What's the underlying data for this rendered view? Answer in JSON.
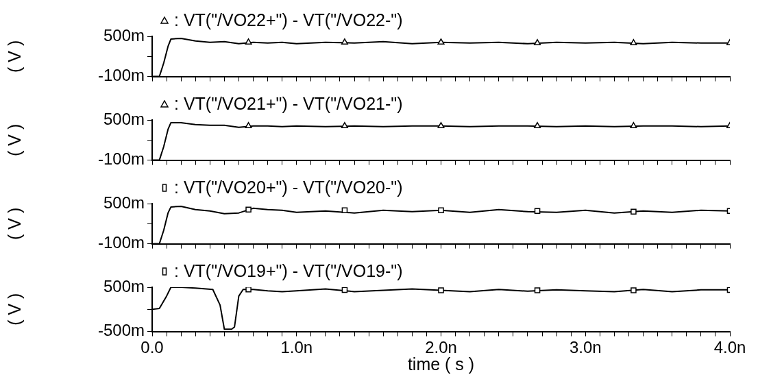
{
  "chart_data": [
    {
      "type": "line",
      "ylabel": "( V )",
      "legend": "top left",
      "tick_labels": "y",
      "xlim": [
        0,
        4
      ],
      "ylim": [
        -100,
        500
      ],
      "yticks": [
        {
          "value": -100,
          "label": "-100m"
        },
        {
          "value": 200,
          "label": null
        },
        {
          "value": 500,
          "label": "500m"
        }
      ],
      "xticks": [
        0,
        0.1,
        0.2,
        0.3,
        0.4,
        0.5,
        0.6,
        0.7,
        0.8,
        0.9,
        1,
        1.1,
        1.2,
        1.3,
        1.4,
        1.5,
        1.6,
        1.7,
        1.8,
        1.9,
        2,
        2.1,
        2.2,
        2.3,
        2.4,
        2.5,
        2.6,
        2.7,
        2.8,
        2.9,
        3,
        3.1,
        3.2,
        3.3,
        3.4,
        3.5,
        3.6,
        3.7,
        3.8,
        3.9,
        4
      ],
      "series": [
        {
          "name": ": VT(\"/VO22+\") - VT(\"/VO22-\")",
          "color": "#000000",
          "marker": "none",
          "x": [
            0,
            0.05,
            0.08,
            0.11,
            0.13,
            0.2,
            0.3,
            0.4,
            0.5,
            0.6,
            0.7,
            0.8,
            0.9,
            1,
            1.2,
            1.4,
            1.6,
            1.8,
            2,
            2.2,
            2.4,
            2.6,
            2.8,
            3,
            3.2,
            3.4,
            3.6,
            3.8,
            4
          ],
          "values": [
            -100,
            -100,
            100,
            350,
            460,
            470,
            430,
            410,
            420,
            390,
            410,
            400,
            410,
            390,
            410,
            400,
            420,
            390,
            410,
            400,
            410,
            390,
            410,
            400,
            410,
            390,
            410,
            400,
            400
          ]
        },
        {
          "type": "scatter",
          "color": "#000000",
          "marker": "triangle",
          "x": [
            0.667,
            1.333,
            2,
            2.667,
            3.333,
            4
          ],
          "values": [
            410,
            410,
            410,
            400,
            400,
            400
          ]
        }
      ]
    },
    {
      "type": "line",
      "ylabel": "( V )",
      "legend": "top left",
      "tick_labels": "y",
      "xlim": [
        0,
        4
      ],
      "ylim": [
        -100,
        500
      ],
      "yticks": [
        {
          "value": -100,
          "label": "-100m"
        },
        {
          "value": 200,
          "label": null
        },
        {
          "value": 500,
          "label": "500m"
        }
      ],
      "xticks": [
        0,
        0.1,
        0.2,
        0.3,
        0.4,
        0.5,
        0.6,
        0.7,
        0.8,
        0.9,
        1,
        1.1,
        1.2,
        1.3,
        1.4,
        1.5,
        1.6,
        1.7,
        1.8,
        1.9,
        2,
        2.1,
        2.2,
        2.3,
        2.4,
        2.5,
        2.6,
        2.7,
        2.8,
        2.9,
        3,
        3.1,
        3.2,
        3.3,
        3.4,
        3.5,
        3.6,
        3.7,
        3.8,
        3.9,
        4
      ],
      "series": [
        {
          "name": ": VT(\"/VO21+\") - VT(\"/VO21-\")",
          "color": "#000000",
          "marker": "none",
          "x": [
            0,
            0.05,
            0.08,
            0.11,
            0.13,
            0.2,
            0.3,
            0.4,
            0.5,
            0.6,
            0.7,
            0.8,
            0.9,
            1,
            1.2,
            1.4,
            1.6,
            1.8,
            2,
            2.2,
            2.4,
            2.6,
            2.8,
            3,
            3.2,
            3.4,
            3.6,
            3.8,
            4
          ],
          "values": [
            -100,
            -100,
            100,
            360,
            460,
            460,
            430,
            420,
            420,
            390,
            410,
            410,
            400,
            410,
            400,
            410,
            400,
            410,
            410,
            400,
            410,
            410,
            400,
            410,
            400,
            410,
            410,
            400,
            410
          ]
        },
        {
          "type": "scatter",
          "color": "#000000",
          "marker": "triangle",
          "x": [
            0.667,
            1.333,
            2,
            2.667,
            3.333,
            4
          ],
          "values": [
            410,
            410,
            410,
            410,
            410,
            410
          ]
        }
      ]
    },
    {
      "type": "line",
      "ylabel": "( V )",
      "legend": "top left",
      "tick_labels": "y",
      "xlim": [
        0,
        4
      ],
      "ylim": [
        -100,
        500
      ],
      "yticks": [
        {
          "value": -100,
          "label": "-100m"
        },
        {
          "value": 200,
          "label": null
        },
        {
          "value": 500,
          "label": "500m"
        }
      ],
      "xticks": [
        0,
        0.1,
        0.2,
        0.3,
        0.4,
        0.5,
        0.6,
        0.7,
        0.8,
        0.9,
        1,
        1.1,
        1.2,
        1.3,
        1.4,
        1.5,
        1.6,
        1.7,
        1.8,
        1.9,
        2,
        2.1,
        2.2,
        2.3,
        2.4,
        2.5,
        2.6,
        2.7,
        2.8,
        2.9,
        3,
        3.1,
        3.2,
        3.3,
        3.4,
        3.5,
        3.6,
        3.7,
        3.8,
        3.9,
        4
      ],
      "series": [
        {
          "name": ": VT(\"/VO20+\") - VT(\"/VO20-\")",
          "color": "#000000",
          "marker": "none",
          "x": [
            0,
            0.05,
            0.08,
            0.11,
            0.13,
            0.2,
            0.3,
            0.4,
            0.5,
            0.6,
            0.7,
            0.8,
            0.9,
            1,
            1.2,
            1.4,
            1.6,
            1.8,
            2,
            2.2,
            2.4,
            2.6,
            2.8,
            3,
            3.2,
            3.4,
            3.6,
            3.8,
            4
          ],
          "values": [
            -100,
            -100,
            100,
            360,
            450,
            460,
            410,
            390,
            350,
            360,
            430,
            410,
            400,
            370,
            390,
            360,
            400,
            380,
            400,
            370,
            410,
            380,
            370,
            400,
            360,
            390,
            370,
            400,
            390
          ]
        },
        {
          "type": "scatter",
          "color": "#000000",
          "marker": "square",
          "x": [
            0.667,
            1.333,
            2,
            2.667,
            3.333,
            4
          ],
          "values": [
            410,
            400,
            400,
            390,
            380,
            390
          ]
        }
      ]
    },
    {
      "type": "line",
      "ylabel": "( V )",
      "xlabel": "time ( s )",
      "legend": "top left",
      "xlim": [
        0,
        4
      ],
      "ylim": [
        -500,
        500
      ],
      "yticks": [
        {
          "value": -500,
          "label": "-500m"
        },
        {
          "value": 0,
          "label": null
        },
        {
          "value": 500,
          "label": "500m"
        }
      ],
      "xticks": [
        {
          "value": 0,
          "label": "0.0"
        },
        {
          "value": 0.1,
          "label": null
        },
        {
          "value": 0.2,
          "label": null
        },
        {
          "value": 0.3,
          "label": null
        },
        {
          "value": 0.4,
          "label": null
        },
        {
          "value": 0.5,
          "label": null
        },
        {
          "value": 0.6,
          "label": null
        },
        {
          "value": 0.7,
          "label": null
        },
        {
          "value": 0.8,
          "label": null
        },
        {
          "value": 0.9,
          "label": null
        },
        {
          "value": 1,
          "label": "1.0n"
        },
        {
          "value": 1.1,
          "label": null
        },
        {
          "value": 1.2,
          "label": null
        },
        {
          "value": 1.3,
          "label": null
        },
        {
          "value": 1.4,
          "label": null
        },
        {
          "value": 1.5,
          "label": null
        },
        {
          "value": 1.6,
          "label": null
        },
        {
          "value": 1.7,
          "label": null
        },
        {
          "value": 1.8,
          "label": null
        },
        {
          "value": 1.9,
          "label": null
        },
        {
          "value": 2,
          "label": "2.0n"
        },
        {
          "value": 2.1,
          "label": null
        },
        {
          "value": 2.2,
          "label": null
        },
        {
          "value": 2.3,
          "label": null
        },
        {
          "value": 2.4,
          "label": null
        },
        {
          "value": 2.5,
          "label": null
        },
        {
          "value": 2.6,
          "label": null
        },
        {
          "value": 2.7,
          "label": null
        },
        {
          "value": 2.8,
          "label": null
        },
        {
          "value": 2.9,
          "label": null
        },
        {
          "value": 3,
          "label": "3.0n"
        },
        {
          "value": 3.1,
          "label": null
        },
        {
          "value": 3.2,
          "label": null
        },
        {
          "value": 3.3,
          "label": null
        },
        {
          "value": 3.4,
          "label": null
        },
        {
          "value": 3.5,
          "label": null
        },
        {
          "value": 3.6,
          "label": null
        },
        {
          "value": 3.7,
          "label": null
        },
        {
          "value": 3.8,
          "label": null
        },
        {
          "value": 3.9,
          "label": null
        },
        {
          "value": 4,
          "label": "4.0n"
        }
      ],
      "series": [
        {
          "name": ": VT(\"/VO19+\") - VT(\"/VO19-\")",
          "color": "#000000",
          "marker": "none",
          "x": [
            0,
            0.05,
            0.1,
            0.13,
            0.2,
            0.3,
            0.42,
            0.47,
            0.5,
            0.55,
            0.57,
            0.6,
            0.63,
            0.7,
            0.8,
            0.9,
            1,
            1.2,
            1.4,
            1.6,
            1.8,
            2,
            2.2,
            2.4,
            2.6,
            2.8,
            3,
            3.2,
            3.4,
            3.6,
            3.8,
            4
          ],
          "values": [
            0,
            20,
            300,
            500,
            500,
            480,
            450,
            100,
            -450,
            -450,
            -400,
            300,
            450,
            450,
            420,
            400,
            420,
            460,
            400,
            430,
            460,
            430,
            400,
            450,
            410,
            440,
            420,
            400,
            450,
            400,
            440,
            440
          ]
        },
        {
          "type": "scatter",
          "color": "#000000",
          "marker": "square",
          "x": [
            0.667,
            1.333,
            2,
            2.667,
            3.333,
            4
          ],
          "values": [
            450,
            440,
            430,
            430,
            430,
            440
          ]
        }
      ]
    }
  ]
}
